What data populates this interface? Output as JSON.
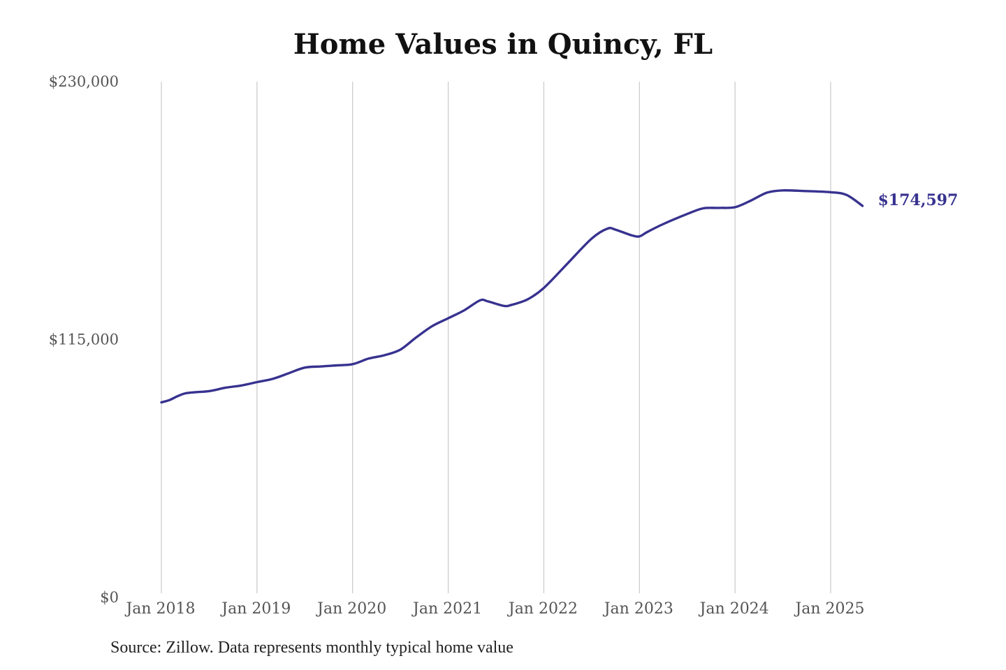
{
  "chart_data": {
    "type": "line",
    "title": "Home Values in Quincy, FL",
    "source": "Source: Zillow. Data represents monthly typical home value",
    "ylim": [
      0,
      230000
    ],
    "y_ticks": [
      {
        "value": 0,
        "label": "$0"
      },
      {
        "value": 115000,
        "label": "$115,000"
      },
      {
        "value": 230000,
        "label": "$230,000"
      }
    ],
    "x_ticks": [
      {
        "value": "2018-01",
        "label": "Jan 2018"
      },
      {
        "value": "2019-01",
        "label": "Jan 2019"
      },
      {
        "value": "2020-01",
        "label": "Jan 2020"
      },
      {
        "value": "2021-01",
        "label": "Jan 2021"
      },
      {
        "value": "2022-01",
        "label": "Jan 2022"
      },
      {
        "value": "2023-01",
        "label": "Jan 2023"
      },
      {
        "value": "2024-01",
        "label": "Jan 2024"
      },
      {
        "value": "2025-01",
        "label": "Jan 2025"
      }
    ],
    "grid": {
      "vertical": true,
      "horizontal": false
    },
    "end_label": "$174,597",
    "series_color": "#37328f",
    "grid_color": "#c8c8c8",
    "series": [
      {
        "x": [
          "2018-01",
          "2018-02",
          "2018-04",
          "2018-07",
          "2018-09",
          "2018-11",
          "2019-01",
          "2019-03",
          "2019-05",
          "2019-07",
          "2019-09",
          "2019-11",
          "2020-01",
          "2020-03",
          "2020-05",
          "2020-07",
          "2020-09",
          "2020-11",
          "2021-01",
          "2021-03",
          "2021-05",
          "2021-06",
          "2021-08",
          "2021-09",
          "2021-11",
          "2022-01",
          "2022-04",
          "2022-07",
          "2022-09",
          "2022-10",
          "2022-12",
          "2023-01",
          "2023-02",
          "2023-04",
          "2023-07",
          "2023-09",
          "2023-11",
          "2024-01",
          "2024-03",
          "2024-05",
          "2024-07",
          "2024-10",
          "2025-01",
          "2025-03",
          "2025-05"
        ],
        "y": [
          87000,
          88000,
          91000,
          92000,
          93500,
          94500,
          96000,
          97500,
          100000,
          102500,
          103000,
          103500,
          104000,
          106500,
          108000,
          110500,
          116000,
          121000,
          124500,
          128000,
          132500,
          132000,
          130000,
          130500,
          133000,
          138000,
          149000,
          160000,
          164500,
          164000,
          161500,
          161000,
          163000,
          166500,
          171000,
          173500,
          173700,
          174000,
          177000,
          180500,
          181500,
          181200,
          180700,
          179500,
          174597
        ]
      }
    ]
  }
}
